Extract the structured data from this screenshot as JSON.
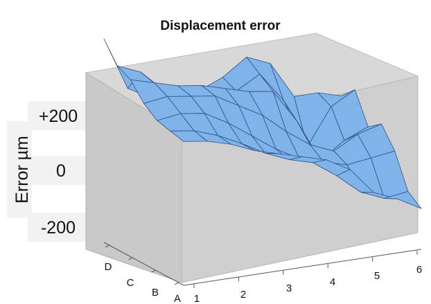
{
  "chart_data": {
    "type": "surface",
    "title": "Displacement error",
    "ylabel": "Error µm",
    "yticks": [
      "+200",
      "0",
      "-200"
    ],
    "ylim": [
      -250,
      300
    ],
    "x_ticks": [
      "1",
      "2",
      "3",
      "4",
      "5",
      "6"
    ],
    "z_ticks": [
      "A",
      "B",
      "C",
      "D"
    ],
    "x": [
      1,
      1.5,
      2,
      2.5,
      3,
      3.5,
      4,
      4.5,
      5,
      5.5,
      6
    ],
    "z": [
      "A",
      "A-B",
      "B",
      "B-C",
      "C",
      "C-D",
      "D"
    ],
    "grid": true,
    "legend": "none",
    "colors": {
      "surface": "#7fb3ea",
      "surface_edge": "#2f4f80",
      "box_back": "#d8d8d8",
      "box_side": "#c7c7c7",
      "box_floor": "#e2e2e2",
      "label_bg": "#f2f2f2"
    },
    "values": [
      [
        120,
        110,
        90,
        60,
        40,
        20,
        0,
        -40,
        -120,
        -150,
        -190
      ],
      [
        130,
        120,
        95,
        60,
        20,
        -10,
        -30,
        -80,
        -140,
        -170,
        -160
      ],
      [
        140,
        150,
        140,
        100,
        50,
        0,
        -40,
        -60,
        -80,
        -70,
        -60
      ],
      [
        170,
        180,
        170,
        160,
        120,
        80,
        20,
        -30,
        -60,
        -20,
        0
      ],
      [
        220,
        200,
        180,
        170,
        150,
        130,
        120,
        20,
        -110,
        -60,
        -30
      ],
      [
        240,
        210,
        140,
        100,
        80,
        110,
        150,
        60,
        -90,
        20,
        60
      ],
      [
        300,
        140,
        100,
        110,
        100,
        130,
        180,
        150,
        40,
        40,
        20
      ]
    ]
  }
}
